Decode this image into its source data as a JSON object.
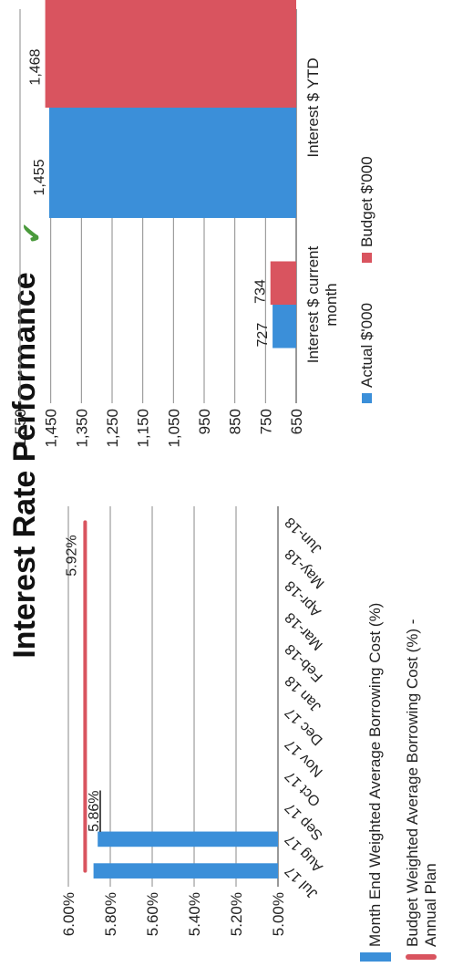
{
  "page": {
    "title": "Interest Rate Performance"
  },
  "colors": {
    "actual": "#3b8fd9",
    "budget": "#d9545f",
    "grid": "#8a8a8a",
    "text": "#222222"
  },
  "chart_data": [
    {
      "type": "bar",
      "title": "",
      "categories": [
        "Jul 17",
        "Aug 17",
        "Sep 17",
        "Oct 17",
        "Nov 17",
        "Dec 17",
        "Jan 18",
        "Feb-18",
        "Mar-18",
        "Apr-18",
        "May-18",
        "Jun-18"
      ],
      "series": [
        {
          "name": "Month End Weighted Average Borrowing Cost (%)",
          "type": "bar",
          "values": [
            5.88,
            5.86,
            null,
            null,
            null,
            null,
            null,
            null,
            null,
            null,
            null,
            null
          ]
        },
        {
          "name": "Budget Weighted Average Borrowing Cost (%) - Annual Plan",
          "type": "line",
          "values": [
            5.92,
            5.92,
            5.92,
            5.92,
            5.92,
            5.92,
            5.92,
            5.92,
            5.92,
            5.92,
            5.92,
            5.92
          ]
        }
      ],
      "data_labels": [
        "5.86%",
        "5.92%"
      ],
      "ylim": [
        5.0,
        6.0
      ],
      "yticks": [
        "5.00%",
        "5.20%",
        "5.40%",
        "5.60%",
        "5.80%",
        "6.00%"
      ],
      "grid": true,
      "legend": "bottom"
    },
    {
      "type": "bar",
      "title": "",
      "categories": [
        "Interest $ current month",
        "Interest $ YTD"
      ],
      "series": [
        {
          "name": "Actual $'000",
          "values": [
            727,
            1455
          ],
          "labels": [
            "727",
            "1,455"
          ]
        },
        {
          "name": "Budget $'000",
          "values": [
            734,
            1468
          ],
          "labels": [
            "734",
            "1,468"
          ]
        }
      ],
      "ylim": [
        650,
        1550
      ],
      "yticks": [
        "650",
        "750",
        "850",
        "950",
        "1,050",
        "1,150",
        "1,250",
        "1,350",
        "1,450",
        "1,550"
      ],
      "grid": true,
      "legend": "bottom"
    }
  ]
}
